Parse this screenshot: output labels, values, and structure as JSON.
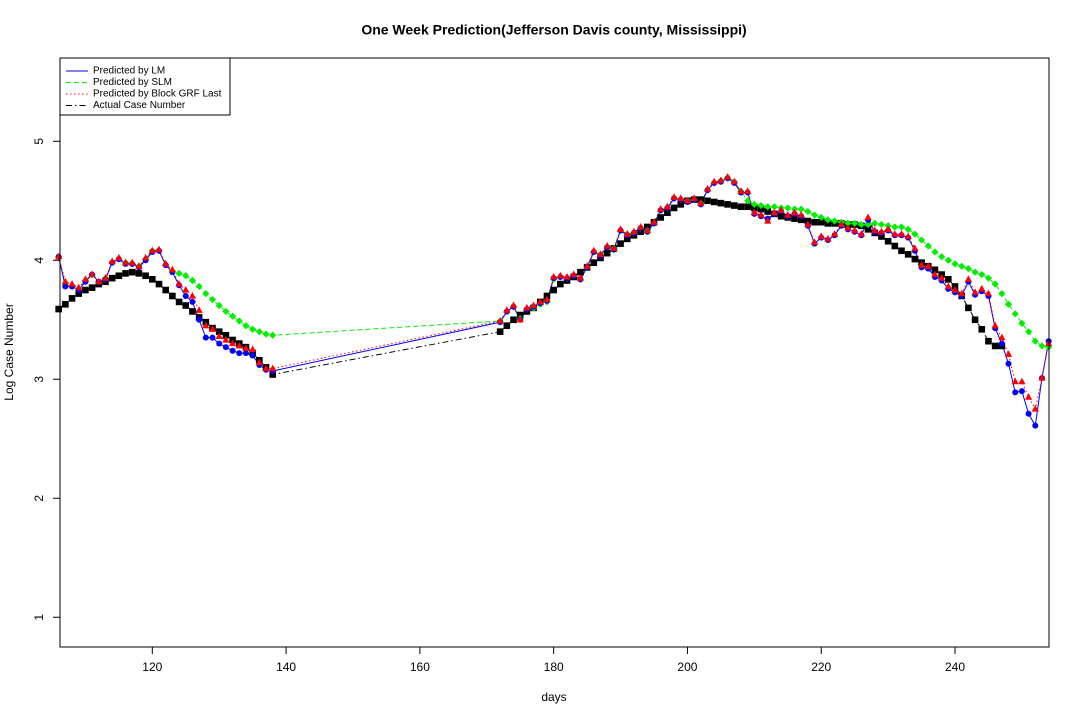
{
  "chart_data": {
    "type": "line",
    "title": "One Week Prediction(Jefferson Davis county, Mississippi)",
    "x_label": "days",
    "y_label": "Log Case Number",
    "xlim": [
      106.2,
      254.05
    ],
    "ylim": [
      0.75,
      5.7
    ],
    "xticks": [
      120,
      140,
      160,
      180,
      200,
      220,
      240
    ],
    "yticks": [
      1,
      2,
      3,
      4,
      5
    ],
    "legend": "top-left",
    "x": [
      106,
      107,
      108,
      109,
      110,
      111,
      112,
      113,
      114,
      115,
      116,
      117,
      118,
      119,
      120,
      121,
      122,
      123,
      124,
      125,
      126,
      127,
      128,
      129,
      130,
      131,
      132,
      133,
      134,
      135,
      136,
      137,
      138,
      172,
      173,
      174,
      175,
      176,
      177,
      178,
      179,
      180,
      181,
      182,
      183,
      184,
      185,
      186,
      187,
      188,
      189,
      190,
      191,
      192,
      193,
      194,
      195,
      196,
      197,
      198,
      199,
      200,
      201,
      202,
      203,
      204,
      205,
      206,
      207,
      208,
      209,
      210,
      211,
      212,
      213,
      214,
      215,
      216,
      217,
      218,
      219,
      220,
      221,
      222,
      223,
      224,
      225,
      226,
      227,
      228,
      229,
      230,
      231,
      232,
      233,
      234,
      235,
      236,
      237,
      238,
      239,
      240,
      241,
      242,
      243,
      244,
      245,
      246,
      247,
      248,
      249,
      250,
      251,
      252,
      253,
      254
    ],
    "series": [
      {
        "name": "Actual Case Number",
        "color": "#000000",
        "linestyle": "dashdot",
        "marker": "square",
        "values": [
          3.59,
          3.63,
          3.68,
          3.72,
          3.75,
          3.77,
          3.8,
          3.82,
          3.85,
          3.87,
          3.89,
          3.9,
          3.89,
          3.87,
          3.84,
          3.8,
          3.75,
          3.7,
          3.65,
          3.62,
          3.57,
          3.52,
          3.48,
          3.43,
          3.4,
          3.37,
          3.33,
          3.3,
          3.27,
          3.22,
          3.16,
          3.1,
          3.04,
          3.4,
          3.45,
          3.5,
          3.54,
          3.57,
          3.6,
          3.65,
          3.7,
          3.75,
          3.8,
          3.83,
          3.86,
          3.9,
          3.94,
          3.98,
          4.02,
          4.06,
          4.1,
          4.14,
          4.18,
          4.21,
          4.24,
          4.28,
          4.32,
          4.36,
          4.4,
          4.44,
          4.47,
          4.5,
          4.51,
          4.51,
          4.5,
          4.49,
          4.48,
          4.47,
          4.46,
          4.45,
          4.45,
          4.44,
          4.43,
          4.41,
          4.39,
          4.37,
          4.36,
          4.35,
          4.34,
          4.33,
          4.32,
          4.32,
          4.31,
          4.31,
          4.31,
          4.3,
          4.3,
          4.29,
          4.26,
          4.23,
          4.2,
          4.16,
          4.12,
          4.08,
          4.05,
          4.01,
          3.98,
          3.95,
          3.92,
          3.88,
          3.84,
          3.78,
          3.7,
          3.6,
          3.5,
          3.42,
          3.32,
          3.28,
          3.28,
          null,
          null,
          null,
          null,
          null,
          null,
          null
        ]
      },
      {
        "name": "Predicted by SLM",
        "color": "#00ee00",
        "linestyle": "dashed",
        "marker": "diamond",
        "values": [
          4.03,
          3.79,
          3.78,
          3.76,
          3.83,
          3.88,
          3.82,
          3.85,
          3.98,
          4.01,
          3.98,
          3.97,
          3.95,
          4.01,
          4.08,
          4.08,
          3.96,
          3.91,
          3.89,
          3.87,
          3.83,
          3.78,
          3.72,
          3.67,
          3.62,
          3.57,
          3.53,
          3.49,
          3.45,
          3.42,
          3.4,
          3.38,
          3.37,
          3.49,
          3.57,
          3.61,
          3.51,
          3.59,
          3.6,
          3.63,
          3.65,
          3.84,
          3.86,
          3.85,
          3.87,
          3.84,
          3.94,
          4.07,
          4.05,
          4.11,
          4.1,
          4.25,
          4.22,
          4.23,
          4.27,
          4.25,
          4.31,
          4.42,
          4.44,
          4.52,
          4.51,
          4.5,
          4.51,
          4.48,
          4.59,
          4.65,
          4.67,
          4.69,
          4.66,
          4.58,
          4.5,
          4.47,
          4.46,
          4.45,
          4.45,
          4.44,
          4.44,
          4.43,
          4.43,
          4.41,
          4.38,
          4.36,
          4.34,
          4.33,
          4.32,
          4.31,
          4.31,
          4.3,
          4.3,
          4.31,
          4.3,
          4.29,
          4.28,
          4.28,
          4.26,
          4.22,
          4.17,
          4.12,
          4.07,
          4.03,
          4.0,
          3.97,
          3.95,
          3.93,
          3.9,
          3.88,
          3.85,
          3.8,
          3.72,
          3.63,
          3.55,
          3.47,
          3.4,
          3.32,
          3.28,
          3.27
        ]
      },
      {
        "name": "Predicted by LM",
        "color": "#0000ff",
        "linestyle": "solid",
        "marker": "circle",
        "values": [
          4.03,
          3.78,
          3.78,
          3.75,
          3.82,
          3.88,
          3.82,
          3.84,
          3.98,
          4.01,
          3.97,
          3.97,
          3.94,
          4.0,
          4.07,
          4.08,
          3.96,
          3.9,
          3.79,
          3.7,
          3.65,
          3.5,
          3.35,
          3.35,
          3.3,
          3.27,
          3.24,
          3.22,
          3.22,
          3.2,
          3.12,
          3.08,
          3.07,
          3.48,
          3.57,
          3.61,
          3.5,
          3.59,
          3.61,
          3.64,
          3.66,
          3.85,
          3.86,
          3.85,
          3.87,
          3.84,
          3.94,
          4.07,
          4.04,
          4.11,
          4.09,
          4.25,
          4.21,
          4.23,
          4.27,
          4.24,
          4.31,
          4.42,
          4.44,
          4.52,
          4.51,
          4.49,
          4.51,
          4.47,
          4.59,
          4.65,
          4.66,
          4.69,
          4.65,
          4.57,
          4.57,
          4.39,
          4.37,
          4.35,
          4.39,
          4.41,
          4.37,
          4.39,
          4.37,
          4.29,
          4.14,
          4.19,
          4.17,
          4.21,
          4.29,
          4.26,
          4.24,
          4.21,
          4.34,
          4.24,
          4.23,
          4.25,
          4.21,
          4.21,
          4.19,
          4.08,
          3.94,
          3.93,
          3.86,
          3.83,
          3.76,
          3.73,
          3.7,
          3.82,
          3.71,
          3.74,
          3.7,
          3.43,
          3.3,
          3.13,
          2.89,
          2.9,
          2.71,
          2.61,
          3.01,
          3.32
        ]
      },
      {
        "name": "Predicted by Block GRF Last",
        "color": "#ff0000",
        "linestyle": "dotted",
        "marker": "triangle",
        "values": [
          4.03,
          3.82,
          3.8,
          3.77,
          3.84,
          3.88,
          3.82,
          3.85,
          3.99,
          4.02,
          3.98,
          3.98,
          3.95,
          4.02,
          4.08,
          4.09,
          3.97,
          3.92,
          3.8,
          3.75,
          3.7,
          3.58,
          3.45,
          3.42,
          3.36,
          3.33,
          3.3,
          3.28,
          3.26,
          3.25,
          3.14,
          3.09,
          3.09,
          3.49,
          3.58,
          3.62,
          3.5,
          3.6,
          3.62,
          3.65,
          3.67,
          3.86,
          3.87,
          3.86,
          3.88,
          3.85,
          3.95,
          4.08,
          4.05,
          4.12,
          4.1,
          4.26,
          4.22,
          4.24,
          4.28,
          4.25,
          4.32,
          4.43,
          4.45,
          4.53,
          4.52,
          4.5,
          4.52,
          4.48,
          4.6,
          4.66,
          4.67,
          4.7,
          4.66,
          4.58,
          4.58,
          4.4,
          4.38,
          4.33,
          4.4,
          4.42,
          4.38,
          4.4,
          4.38,
          4.3,
          4.15,
          4.2,
          4.18,
          4.22,
          4.3,
          4.27,
          4.25,
          4.22,
          4.36,
          4.25,
          4.24,
          4.26,
          4.22,
          4.22,
          4.2,
          4.1,
          3.96,
          3.95,
          3.88,
          3.85,
          3.78,
          3.75,
          3.72,
          3.84,
          3.73,
          3.76,
          3.72,
          3.45,
          3.35,
          3.21,
          2.98,
          2.98,
          2.85,
          2.75,
          3.01,
          3.3
        ]
      }
    ],
    "legend_order": [
      2,
      1,
      3,
      0
    ]
  }
}
